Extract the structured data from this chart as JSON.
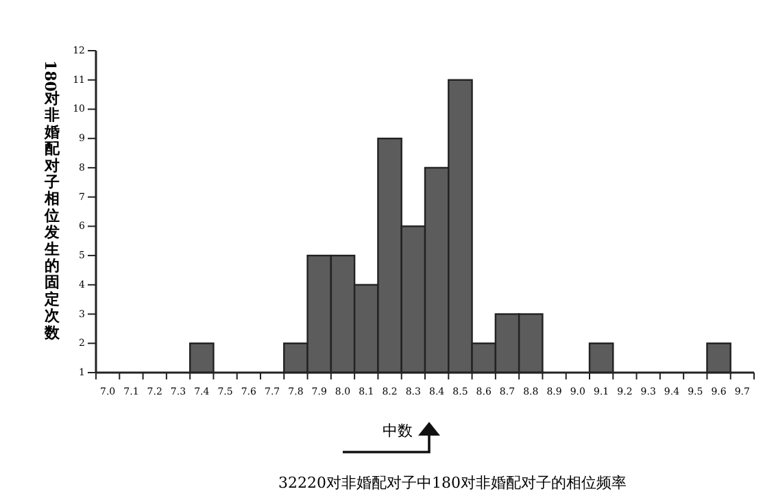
{
  "chart_data": {
    "type": "bar",
    "categories": [
      "7.0",
      "7.1",
      "7.2",
      "7.3",
      "7.4",
      "7.5",
      "7.6",
      "7.7",
      "7.8",
      "7.9",
      "8.0",
      "8.1",
      "8.2",
      "8.3",
      "8.4",
      "8.5",
      "8.6",
      "8.7",
      "8.8",
      "8.9",
      "9.0",
      "9.1",
      "9.2",
      "9.3",
      "9.4",
      "9.5",
      "9.6",
      "9.7"
    ],
    "values": [
      null,
      null,
      null,
      null,
      2,
      null,
      null,
      null,
      2,
      5,
      5,
      4,
      9,
      6,
      8,
      11,
      2,
      3,
      3,
      null,
      null,
      2,
      null,
      null,
      null,
      null,
      2,
      null
    ],
    "color": "#5c5c5c",
    "ylim": [
      1,
      12
    ],
    "yticks": [
      1,
      2,
      3,
      4,
      5,
      6,
      7,
      8,
      9,
      10,
      11,
      12
    ],
    "ylabel": "180对非婚配对子相位发生的固定次数",
    "annotations": [
      "中数",
      "32220对非婚配对子中180对非婚配对子的相位频率"
    ],
    "grid": false
  }
}
